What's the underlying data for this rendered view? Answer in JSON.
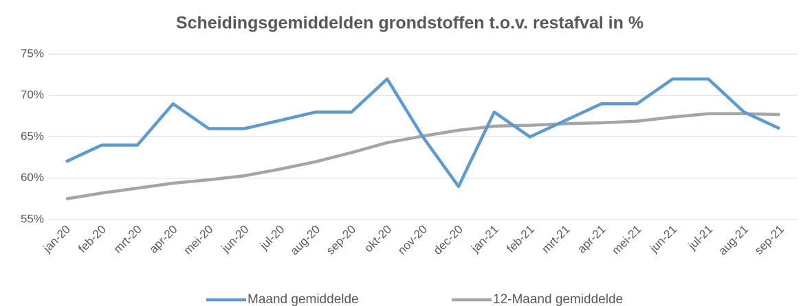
{
  "chart_data": {
    "type": "line",
    "title": "Scheidingsgemiddelden grondstoffen t.o.v. restafval in %",
    "categories": [
      "jan-20",
      "feb-20",
      "mrt-20",
      "apr-20",
      "mei-20",
      "jun-20",
      "jul-20",
      "aug-20",
      "sep-20",
      "okt-20",
      "nov-20",
      "dec-20",
      "jan-21",
      "feb-21",
      "mrt-21",
      "apr-21",
      "mei-21",
      "jun-21",
      "jul-21",
      "aug-21",
      "sep-21"
    ],
    "series": [
      {
        "name": "Maand gemiddelde",
        "color": "#5b9bd5",
        "values": [
          62,
          64,
          64,
          69,
          66,
          66,
          67,
          68,
          68,
          72,
          65,
          59,
          68,
          65,
          67,
          69,
          69,
          72,
          72,
          68,
          66
        ]
      },
      {
        "name": "12-Maand gemiddelde",
        "color": "#a5a5a5",
        "values": [
          57.5,
          58.2,
          58.8,
          59.4,
          59.8,
          60.3,
          61.1,
          62.0,
          63.1,
          64.3,
          65.1,
          65.8,
          66.3,
          66.4,
          66.6,
          66.7,
          66.9,
          67.4,
          67.8,
          67.8,
          67.7
        ]
      }
    ],
    "ylim": [
      55,
      75
    ],
    "yticks": [
      {
        "value": 55,
        "label": "55%"
      },
      {
        "value": 60,
        "label": "60%"
      },
      {
        "value": 65,
        "label": "65%"
      },
      {
        "value": 70,
        "label": "70%"
      },
      {
        "value": 75,
        "label": "75%"
      }
    ],
    "grid": true,
    "legend": "bottom"
  }
}
